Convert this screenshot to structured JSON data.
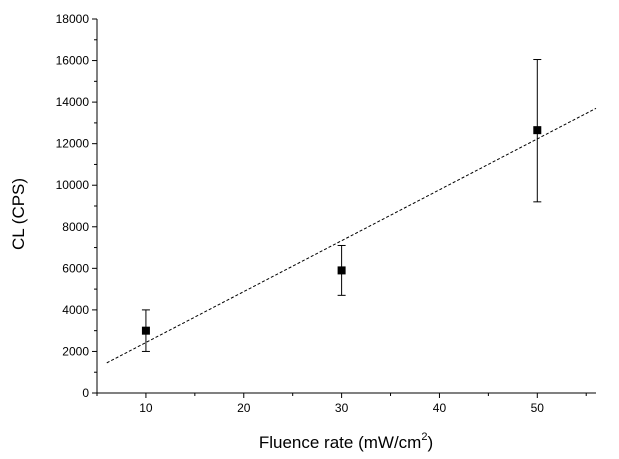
{
  "chart_data": {
    "type": "scatter",
    "xlabel": "Fluence rate (mW/cm",
    "xlabel_superscript": "2",
    "xlabel_suffix": ")",
    "ylabel": "CL (CPS)",
    "xlim": [
      5,
      56
    ],
    "ylim": [
      0,
      18000
    ],
    "x_ticks": [
      10,
      20,
      30,
      40,
      50
    ],
    "x_tick_labels": [
      "10",
      "20",
      "30",
      "40",
      "50"
    ],
    "y_ticks": [
      0,
      2000,
      4000,
      6000,
      8000,
      10000,
      12000,
      14000,
      16000,
      18000
    ],
    "y_tick_labels": [
      "0",
      "2000",
      "4000",
      "6000",
      "8000",
      "10000",
      "12000",
      "14000",
      "16000",
      "18000"
    ],
    "grid": false,
    "series": [
      {
        "marker": "square",
        "color": "#000000",
        "points": [
          {
            "x": 10,
            "y": 3000,
            "err_low": 2000,
            "err_high": 4000
          },
          {
            "x": 30,
            "y": 5900,
            "err_low": 4700,
            "err_high": 7100
          },
          {
            "x": 50,
            "y": 12650,
            "err_low": 9200,
            "err_high": 16050
          }
        ]
      }
    ],
    "fit_line": {
      "style": "dashed",
      "color": "#000000",
      "x": [
        6,
        56
      ],
      "y": [
        1450,
        13700
      ]
    }
  }
}
